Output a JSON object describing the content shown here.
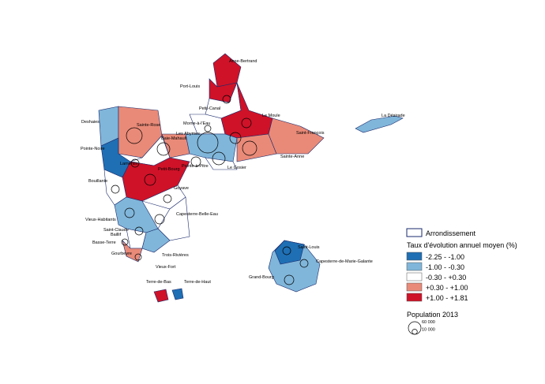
{
  "map": {
    "place_labels": [
      "Anse-Bertrand",
      "Port-Louis",
      "Petit-Canal",
      "Morne-à-l'Eau",
      "Le Moule",
      "Les Abymes",
      "Baie-Mahault",
      "Saint-François",
      "Deshaies",
      "Sainte-Rose",
      "Pointe-Noire",
      "Lamentin",
      "Petit-Bourg",
      "Pointe-à-Pitre",
      "Le Gosier",
      "Sainte-Anne",
      "Bouillante",
      "Goyave",
      "Capesterre-Belle-Eau",
      "Vieux-Habitants",
      "Saint-Claude",
      "Baillif",
      "Basse-Terre",
      "Gourbeyre",
      "Trois-Rivières",
      "Vieux-Fort",
      "Terre-de-Bas",
      "Terre-de-Haut",
      "La Désirade",
      "Saint-Louis",
      "Capesterre-de-Marie-Galante",
      "Grand-Bourg"
    ],
    "legend": {
      "boundary": "Arrondissement",
      "title": "Taux d'évolution annuel moyen (%)",
      "classes": [
        {
          "label": "-2.25 - -1.00",
          "color": "#1f6fb4"
        },
        {
          "label": "-1.00 - -0.30",
          "color": "#80b6da"
        },
        {
          "label": "-0.30 - +0.30",
          "color": "#ffffff"
        },
        {
          "label": "+0.30 - +1.00",
          "color": "#e98a78"
        },
        {
          "label": "+1.00 - +1.81",
          "color": "#cf1228"
        }
      ],
      "size_title": "Population 2013",
      "sizes": [
        {
          "value": 60000,
          "label": "60 000"
        },
        {
          "value": 10000,
          "label": "10 000"
        }
      ]
    }
  }
}
